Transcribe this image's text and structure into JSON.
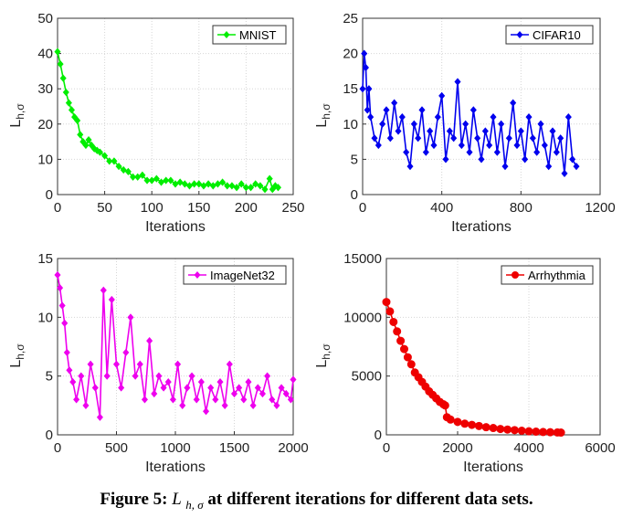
{
  "caption": {
    "prefix": "Figure 5:",
    "symbol": "L",
    "subscript": "h, σ",
    "suffix": "at different iterations for different data sets."
  },
  "chart_data": [
    {
      "type": "line",
      "legend": "MNIST",
      "legend_position": "top-right",
      "xlabel": "Iterations",
      "ylabel_main": "L",
      "ylabel_sub": "h,σ",
      "xlim": [
        0,
        250
      ],
      "ylim": [
        0,
        50
      ],
      "xticks": [
        0,
        50,
        100,
        150,
        200,
        250
      ],
      "yticks": [
        0,
        10,
        20,
        30,
        40,
        50
      ],
      "grid": true,
      "color": "#00ee00",
      "x": [
        0,
        3,
        6,
        9,
        12,
        15,
        18,
        21,
        24,
        27,
        30,
        33,
        36,
        39,
        42,
        45,
        50,
        55,
        60,
        65,
        70,
        75,
        80,
        85,
        90,
        95,
        100,
        105,
        110,
        115,
        120,
        125,
        130,
        135,
        140,
        145,
        150,
        155,
        160,
        165,
        170,
        175,
        180,
        185,
        190,
        195,
        200,
        205,
        210,
        215,
        220,
        225,
        228,
        231,
        234
      ],
      "y": [
        40.5,
        37,
        33,
        29,
        26,
        24,
        22,
        21,
        17,
        15,
        14,
        15.5,
        14,
        13,
        12.5,
        12,
        11,
        9.5,
        9.5,
        8,
        7,
        6.5,
        5,
        5,
        5.5,
        4,
        4,
        4.5,
        3.5,
        4,
        4,
        3,
        3.5,
        3,
        2.5,
        3,
        3,
        2.5,
        3,
        2.5,
        3,
        3.5,
        2.5,
        2.5,
        2,
        3,
        2,
        2,
        3,
        2.5,
        1.5,
        4.5,
        1.5,
        2.5,
        2
      ]
    },
    {
      "type": "line",
      "legend": "CIFAR10",
      "legend_position": "top-right",
      "xlabel": "Iterations",
      "ylabel_main": "L",
      "ylabel_sub": "h,σ",
      "xlim": [
        0,
        1200
      ],
      "ylim": [
        0,
        25
      ],
      "xticks": [
        0,
        400,
        800,
        1200
      ],
      "yticks": [
        0,
        5,
        10,
        15,
        20,
        25
      ],
      "grid": true,
      "color": "#0000ee",
      "x": [
        0,
        8,
        16,
        24,
        32,
        40,
        60,
        80,
        100,
        120,
        140,
        160,
        180,
        200,
        220,
        240,
        260,
        280,
        300,
        320,
        340,
        360,
        380,
        400,
        420,
        440,
        460,
        480,
        500,
        520,
        540,
        560,
        580,
        600,
        620,
        640,
        660,
        680,
        700,
        720,
        740,
        760,
        780,
        800,
        820,
        840,
        860,
        880,
        900,
        920,
        940,
        960,
        980,
        1000,
        1020,
        1040,
        1060,
        1080
      ],
      "y": [
        15,
        20,
        18,
        12,
        15,
        11,
        8,
        7,
        10,
        12,
        8,
        13,
        9,
        11,
        6,
        4,
        10,
        8,
        12,
        6,
        9,
        7,
        11,
        14,
        5,
        9,
        8,
        16,
        7,
        10,
        6,
        12,
        8,
        5,
        9,
        7,
        11,
        6,
        10,
        4,
        8,
        13,
        7,
        9,
        5,
        11,
        8,
        6,
        10,
        7,
        4,
        9,
        6,
        8,
        3,
        11,
        5,
        4
      ]
    },
    {
      "type": "line",
      "legend": "ImageNet32",
      "legend_position": "top-right",
      "xlabel": "Iterations",
      "ylabel_main": "L",
      "ylabel_sub": "h,σ",
      "xlim": [
        0,
        2000
      ],
      "ylim": [
        0,
        15
      ],
      "xticks": [
        0,
        500,
        1000,
        1500,
        2000
      ],
      "yticks": [
        0,
        5,
        10,
        15
      ],
      "grid": true,
      "color": "#ee00ee",
      "x": [
        0,
        20,
        40,
        60,
        80,
        100,
        130,
        160,
        200,
        240,
        280,
        320,
        360,
        390,
        420,
        460,
        500,
        540,
        580,
        620,
        660,
        700,
        740,
        780,
        820,
        860,
        900,
        940,
        980,
        1020,
        1060,
        1100,
        1140,
        1180,
        1220,
        1260,
        1300,
        1340,
        1380,
        1420,
        1460,
        1500,
        1540,
        1580,
        1620,
        1660,
        1700,
        1740,
        1780,
        1820,
        1860,
        1900,
        1940,
        1980,
        2000
      ],
      "y": [
        13.6,
        12.5,
        11,
        9.5,
        7,
        5.5,
        4.5,
        3,
        5,
        2.5,
        6,
        4,
        1.5,
        12.3,
        5,
        11.5,
        6,
        4,
        7,
        10,
        5,
        6,
        3,
        8,
        3.5,
        5,
        4,
        4.5,
        3,
        6,
        2.5,
        4,
        5,
        3,
        4.5,
        2,
        4,
        3,
        4.5,
        2.5,
        6,
        3.5,
        4,
        3,
        4.5,
        2.5,
        4,
        3.5,
        5,
        3,
        2.5,
        4,
        3.5,
        3,
        4.7
      ]
    },
    {
      "type": "line",
      "legend": "Arrhythmia",
      "legend_position": "top-right",
      "xlabel": "Iterations",
      "ylabel_main": "L",
      "ylabel_sub": "h,σ",
      "xlim": [
        0,
        6000
      ],
      "ylim": [
        0,
        15000
      ],
      "xticks": [
        0,
        2000,
        4000,
        6000
      ],
      "yticks": [
        0,
        5000,
        10000,
        15000
      ],
      "grid": true,
      "color": "#ee0000",
      "x": [
        0,
        100,
        200,
        300,
        400,
        500,
        600,
        700,
        800,
        900,
        1000,
        1100,
        1200,
        1300,
        1400,
        1500,
        1600,
        1650,
        1700,
        1800,
        2000,
        2200,
        2400,
        2600,
        2800,
        3000,
        3200,
        3400,
        3600,
        3800,
        4000,
        4200,
        4400,
        4600,
        4800,
        4900
      ],
      "y": [
        11300,
        10500,
        9600,
        8800,
        8000,
        7300,
        6600,
        6000,
        5300,
        4900,
        4500,
        4100,
        3700,
        3400,
        3100,
        2800,
        2600,
        2500,
        1500,
        1300,
        1100,
        950,
        850,
        750,
        650,
        580,
        500,
        450,
        400,
        350,
        300,
        270,
        240,
        220,
        200,
        190
      ]
    }
  ]
}
